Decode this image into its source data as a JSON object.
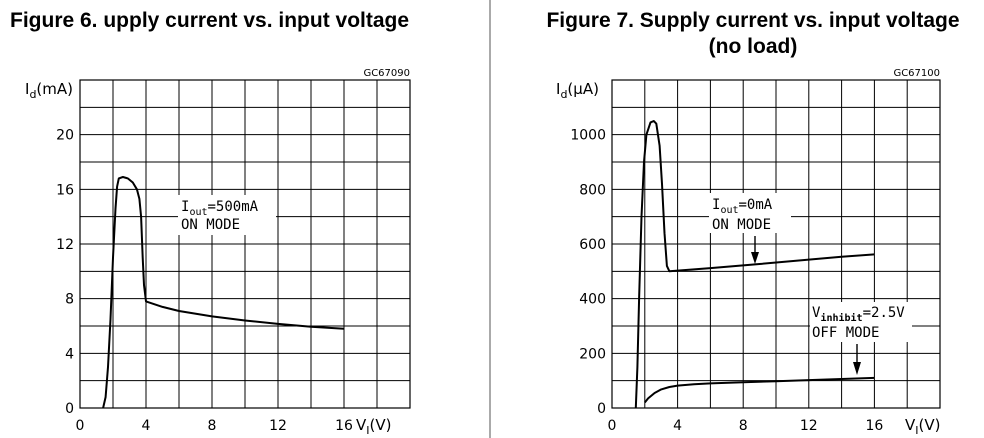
{
  "chart_data": [
    {
      "type": "line",
      "title": "Figure 6. upply current vs. input voltage",
      "code": "GC67090",
      "ylabel": {
        "main": "I",
        "sub": "d",
        "unit": "(mA)"
      },
      "xlabel": {
        "main": "V",
        "sub": "I",
        "unit": "(V)"
      },
      "xlim": [
        0,
        20
      ],
      "ylim": [
        0,
        24
      ],
      "xticks": [
        0,
        4,
        8,
        12,
        16
      ],
      "yticks": [
        0,
        4,
        8,
        12,
        16,
        20
      ],
      "grid": true,
      "annotations": [
        {
          "line1_main": "I",
          "line1_sub": "out",
          "line1_rest": "=500mA",
          "line2": "ON MODE"
        }
      ],
      "series": [
        {
          "name": "",
          "points": [
            [
              1.4,
              0
            ],
            [
              1.55,
              0.8
            ],
            [
              1.7,
              3.0
            ],
            [
              1.85,
              6.5
            ],
            [
              2.0,
              11.0
            ],
            [
              2.15,
              14.6
            ],
            [
              2.25,
              16.2
            ],
            [
              2.35,
              16.8
            ],
            [
              2.6,
              16.9
            ],
            [
              2.9,
              16.8
            ],
            [
              3.2,
              16.5
            ],
            [
              3.45,
              16.0
            ],
            [
              3.6,
              15.3
            ],
            [
              3.7,
              14.0
            ],
            [
              3.8,
              11.0
            ],
            [
              3.88,
              9.0
            ],
            [
              4.0,
              7.8
            ],
            [
              5.0,
              7.4
            ],
            [
              6.0,
              7.1
            ],
            [
              8.0,
              6.7
            ],
            [
              10.0,
              6.4
            ],
            [
              12.0,
              6.15
            ],
            [
              14.0,
              5.95
            ],
            [
              16.0,
              5.8
            ]
          ]
        }
      ]
    },
    {
      "type": "line",
      "title_lines": [
        "Figure 7. Supply current vs. input voltage",
        "(no load)"
      ],
      "code": "GC67100",
      "ylabel": {
        "main": "I",
        "sub": "d",
        "unit": "(µA)"
      },
      "xlabel": {
        "main": "V",
        "sub": "I",
        "unit": "(V)"
      },
      "xlim": [
        0,
        20
      ],
      "ylim": [
        0,
        1200
      ],
      "xticks": [
        0,
        4,
        8,
        12,
        16
      ],
      "yticks": [
        0,
        200,
        400,
        600,
        800,
        1000
      ],
      "grid": true,
      "annotations": [
        {
          "line1_main": "I",
          "line1_sub": "out",
          "line1_rest": "=0mA",
          "line2": "ON MODE"
        },
        {
          "line1_main": "V",
          "line1_sub": "inhibit",
          "line1_rest": "=2.5V",
          "line2": "OFF MODE"
        }
      ],
      "series": [
        {
          "name": "",
          "points": [
            [
              1.45,
              0
            ],
            [
              1.55,
              150
            ],
            [
              1.65,
              400
            ],
            [
              1.8,
              700
            ],
            [
              1.95,
              900
            ],
            [
              2.1,
              1000
            ],
            [
              2.35,
              1045
            ],
            [
              2.55,
              1050
            ],
            [
              2.7,
              1040
            ],
            [
              2.9,
              960
            ],
            [
              3.05,
              820
            ],
            [
              3.2,
              640
            ],
            [
              3.35,
              520
            ],
            [
              3.5,
              500
            ],
            [
              6.0,
              512
            ],
            [
              9.0,
              527
            ],
            [
              12.0,
              543
            ],
            [
              14.0,
              553
            ],
            [
              16.0,
              562
            ]
          ]
        },
        {
          "name": "",
          "points": [
            [
              2.0,
              20
            ],
            [
              2.2,
              35
            ],
            [
              2.6,
              55
            ],
            [
              3.0,
              68
            ],
            [
              3.5,
              77
            ],
            [
              4.0,
              82
            ],
            [
              5.0,
              87
            ],
            [
              6.0,
              90
            ],
            [
              8.0,
              94
            ],
            [
              10.0,
              98
            ],
            [
              12.0,
              102
            ],
            [
              14.0,
              106
            ],
            [
              16.0,
              110
            ]
          ]
        }
      ]
    }
  ]
}
